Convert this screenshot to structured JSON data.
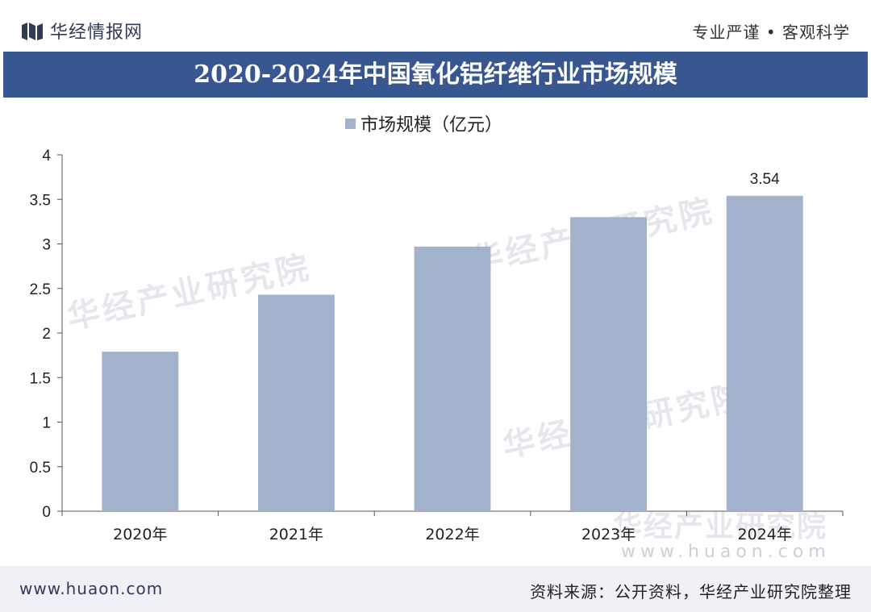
{
  "header": {
    "brand": "华经情报网",
    "slogan": "专业严谨 • 客观科学"
  },
  "watermark": {
    "text": "华经产业研究院",
    "url": "www.huaon.com"
  },
  "footer": {
    "url": "www.huaon.com",
    "source": "资料来源：公开资料，华经产业研究院整理"
  },
  "colors": {
    "title_band": "#385791",
    "bar": "#a3b2cc",
    "footer_bg": "#eff1f6"
  },
  "chart_data": {
    "type": "bar",
    "title": "2020-2024年中国氧化铝纤维行业市场规模",
    "categories": [
      "2020年",
      "2021年",
      "2022年",
      "2023年",
      "2024年"
    ],
    "series": [
      {
        "name": "市场规模（亿元）",
        "values": [
          1.79,
          2.43,
          2.97,
          3.3,
          3.54
        ]
      }
    ],
    "data_labels": {
      "2024年": "3.54"
    },
    "ylim": [
      0,
      4
    ],
    "yticks": [
      "0",
      "0.5",
      "1",
      "1.5",
      "2",
      "2.5",
      "3",
      "3.5",
      "4"
    ],
    "grid": false,
    "legend": "top-center"
  }
}
